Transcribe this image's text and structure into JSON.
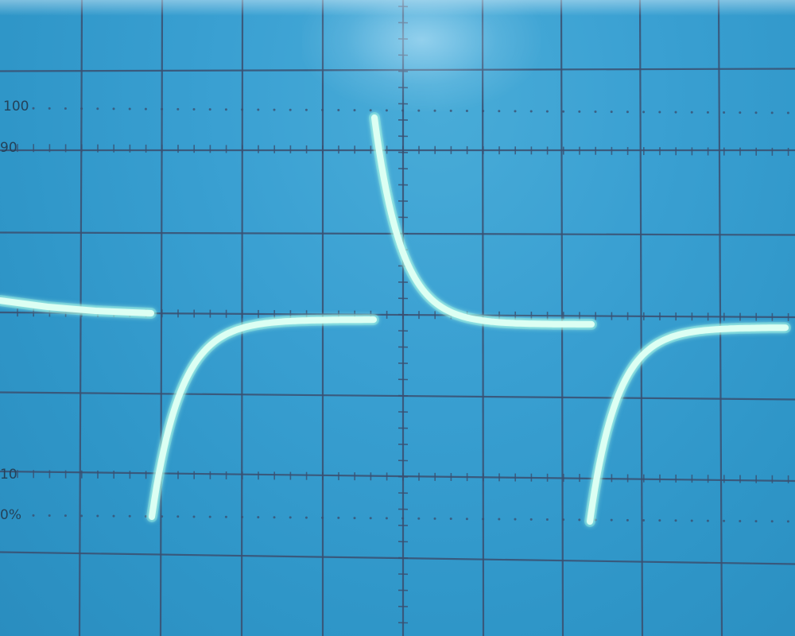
{
  "scope_screen": {
    "labels": {
      "level_100": "100",
      "level_90": "90",
      "level_10": "10",
      "level_0": "0%"
    },
    "colors": {
      "screen": "#2f97c9",
      "graticule": "#3a4f70",
      "trace": "#dcfff3",
      "trace_glow": "#8ff5e0"
    },
    "graticule": {
      "divisions_horizontal": 10,
      "divisions_vertical": 8,
      "minor_ticks_per_division": 5
    }
  }
}
